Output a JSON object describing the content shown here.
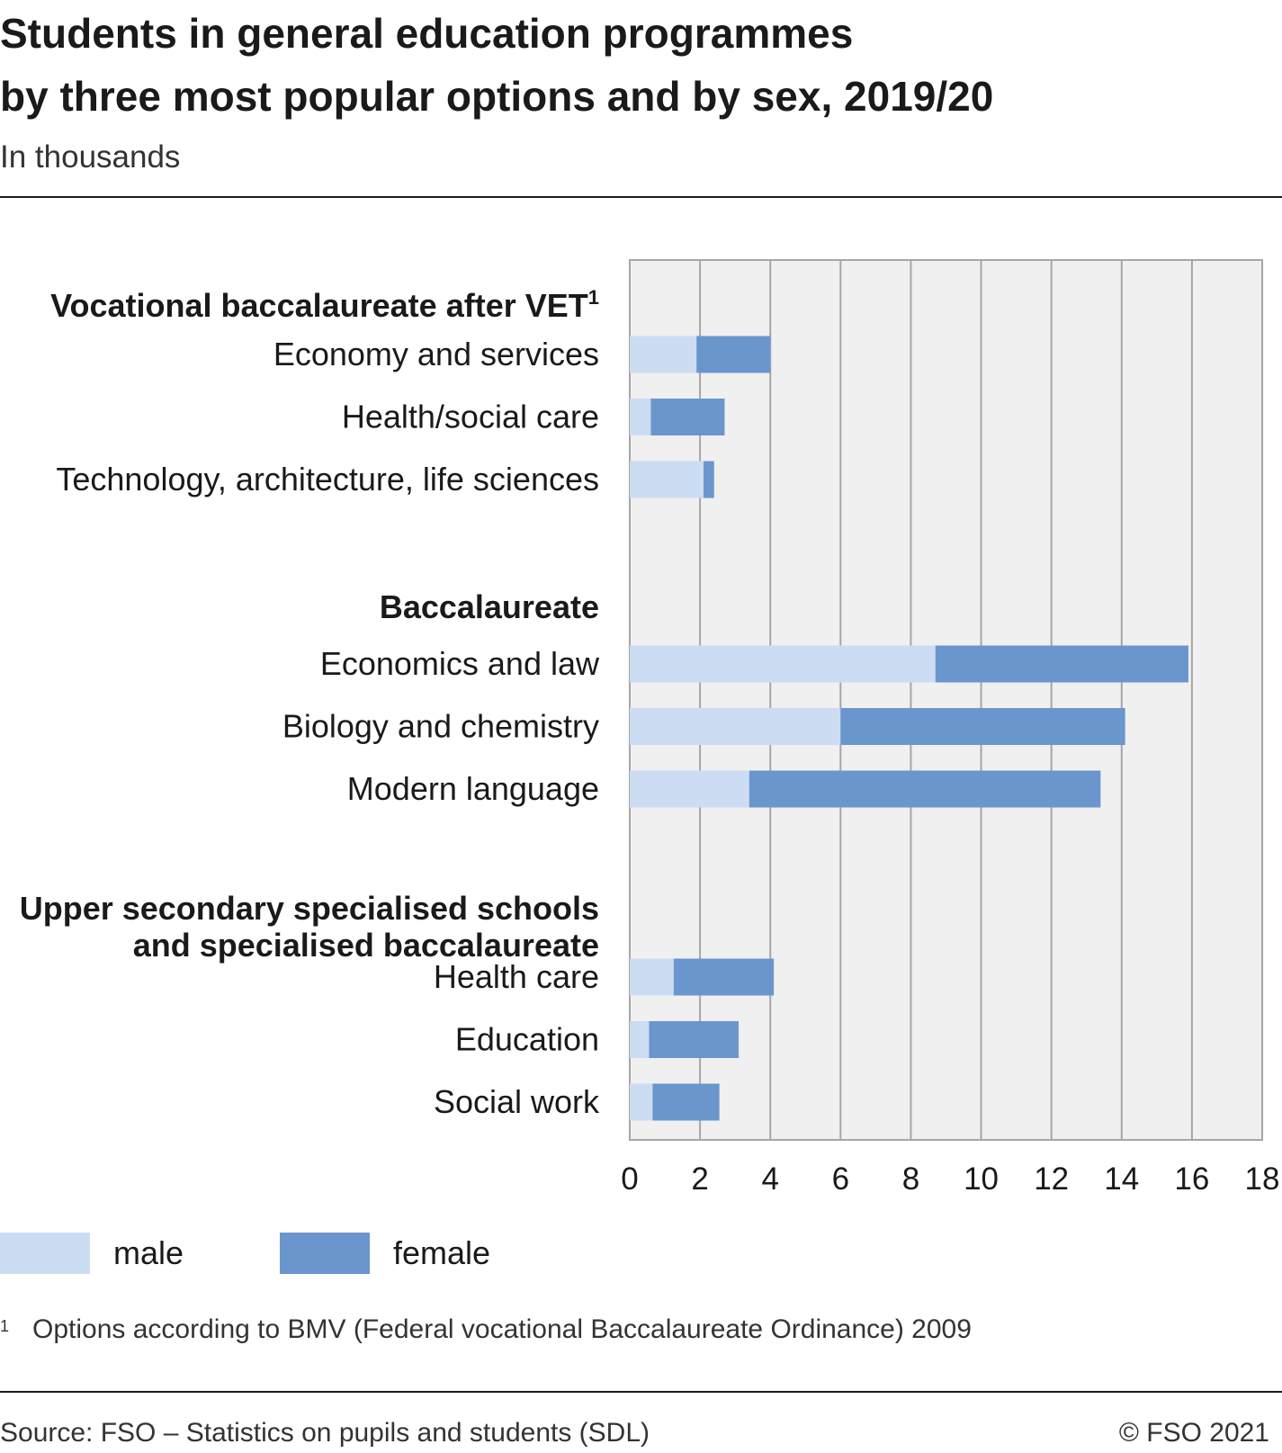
{
  "header": {
    "title_line1": "Students in general education programmes",
    "title_line2": "by three most popular options and by sex, 2019/20",
    "subtitle": "In thousands"
  },
  "chart_data": {
    "type": "bar",
    "orientation": "horizontal",
    "stacked": true,
    "xlim": [
      0,
      18
    ],
    "xticks": [
      "0",
      "2",
      "4",
      "6",
      "8",
      "10",
      "12",
      "14",
      "16",
      "18"
    ],
    "grid": true,
    "groups": [
      {
        "label": "Vocational baccalaureate after VET",
        "footnote_marker": "1",
        "categories": [
          "Economy and services",
          "Health/social care",
          "Technology, architecture, life sciences"
        ]
      },
      {
        "label": "Baccalaureate",
        "categories": [
          "Economics and law",
          "Biology and chemistry",
          "Modern language"
        ]
      },
      {
        "label": "Upper secondary specialised schools and specialised baccalaureate",
        "label_lines": [
          "Upper secondary specialised schools",
          "and specialised baccalaureate"
        ],
        "categories": [
          "Health care",
          "Education",
          "Social work"
        ]
      }
    ],
    "series": [
      {
        "name": "male",
        "color": "#ccdcf2",
        "values": [
          1.9,
          0.6,
          2.1,
          8.7,
          6.0,
          3.4,
          1.25,
          0.55,
          0.65
        ]
      },
      {
        "name": "female",
        "color": "#6a96cd",
        "values": [
          2.1,
          2.1,
          0.3,
          7.2,
          8.1,
          10.0,
          2.85,
          2.55,
          1.9
        ]
      }
    ],
    "legend_position": "bottom-left"
  },
  "footnote": {
    "marker": "1",
    "text": "Options according to BMV (Federal vocational Baccalaureate Ordinance) 2009"
  },
  "source": "Source: FSO – Statistics on pupils and students (SDL)",
  "copyright": "© FSO 2021"
}
